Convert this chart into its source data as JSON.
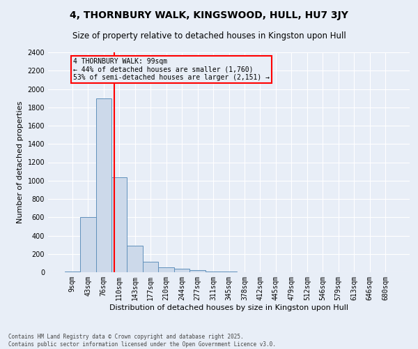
{
  "title": "4, THORNBURY WALK, KINGSWOOD, HULL, HU7 3JY",
  "subtitle": "Size of property relative to detached houses in Kingston upon Hull",
  "xlabel": "Distribution of detached houses by size in Kingston upon Hull",
  "ylabel": "Number of detached properties",
  "categories": [
    "9sqm",
    "43sqm",
    "76sqm",
    "110sqm",
    "143sqm",
    "177sqm",
    "210sqm",
    "244sqm",
    "277sqm",
    "311sqm",
    "345sqm",
    "378sqm",
    "412sqm",
    "445sqm",
    "479sqm",
    "512sqm",
    "546sqm",
    "579sqm",
    "613sqm",
    "646sqm",
    "680sqm"
  ],
  "values": [
    10,
    600,
    1900,
    1040,
    290,
    115,
    50,
    35,
    25,
    5,
    5,
    2,
    0,
    0,
    0,
    0,
    0,
    0,
    0,
    0,
    0
  ],
  "bar_color": "#ccd9ea",
  "bar_edge_color": "#6090bb",
  "bar_edge_width": 0.7,
  "ylim": [
    0,
    2400
  ],
  "yticks": [
    0,
    200,
    400,
    600,
    800,
    1000,
    1200,
    1400,
    1600,
    1800,
    2000,
    2200,
    2400
  ],
  "annotation_text": "4 THORNBURY WALK: 99sqm\n← 44% of detached houses are smaller (1,760)\n53% of semi-detached houses are larger (2,151) →",
  "footnote": "Contains HM Land Registry data © Crown copyright and database right 2025.\nContains public sector information licensed under the Open Government Licence v3.0.",
  "background_color": "#e8eef7",
  "grid_color": "#ffffff",
  "title_fontsize": 10,
  "subtitle_fontsize": 8.5,
  "label_fontsize": 8,
  "tick_fontsize": 7,
  "footnote_fontsize": 5.5
}
